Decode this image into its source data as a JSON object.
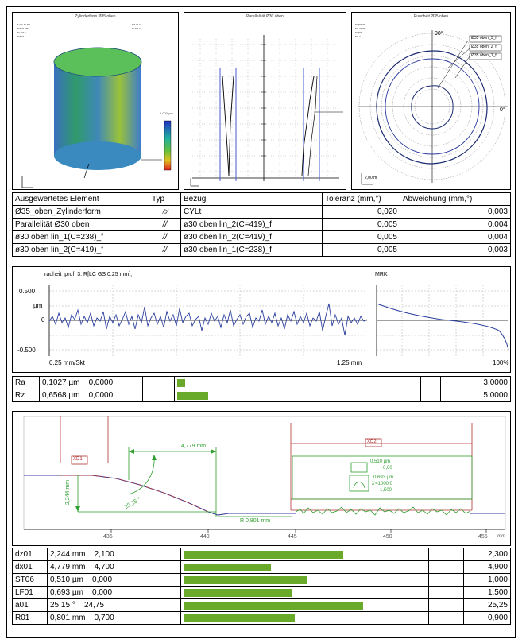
{
  "panels": {
    "cylinder_title": "Zylinderform Ø35 oben",
    "parallel_title": "Parallelität Ø30 oben",
    "roundness_title": "Rundheit Ø35 oben",
    "cylinder_scale": "1,000 µm",
    "roundness_angle": "90°",
    "roundness_zero": "0°",
    "roundness_scale": "2,00 m",
    "legend": [
      "Ø35 oben_3_f",
      "Ø35 oben_2_f",
      "Ø35 oben_1_f"
    ]
  },
  "eval_table": {
    "headers": [
      "Ausgewertetes Element",
      "Typ",
      "Bezug",
      "Toleranz (mm,°)",
      "Abweichung (mm,°)"
    ],
    "rows": [
      {
        "element": "Ø35_oben_Zylinderform",
        "type": "⌭",
        "ref": "CYLt",
        "tol": "0,020",
        "dev": "0,003"
      },
      {
        "element": "Parallelität Ø30 oben",
        "type": "//",
        "ref": "ø30 oben lin_2(C=419)_f",
        "tol": "0,005",
        "dev": "0,004"
      },
      {
        "element": "ø30 oben lin_1(C=238)_f",
        "type": "//",
        "ref": "ø30 oben lin_2(C=419)_f",
        "tol": "0,005",
        "dev": "0,004"
      },
      {
        "element": "ø30 oben lin_2(C=419)_f",
        "type": "//",
        "ref": "ø30 oben lin_1(C=238)_f",
        "tol": "0,005",
        "dev": "0,003"
      }
    ]
  },
  "roughness": {
    "title": "rauheit_prof_3. R[LC GS 0.25 mm];",
    "mrk": "MRK",
    "y_top": "0.500",
    "y_unit": "µm",
    "y_zero": "0",
    "y_bottom": "-0.500",
    "x_left": "0.25 mm/Skt",
    "x_right": "1.25 mm",
    "mrk_pct": "100%"
  },
  "rough_table": [
    {
      "name": "Ra",
      "value": "0,1027",
      "unit": "µm",
      "min": "0,0000",
      "fill": 0.033,
      "max": "3,0000"
    },
    {
      "name": "Rz",
      "value": "0,6568",
      "unit": "µm",
      "min": "0,0000",
      "fill": 0.13,
      "max": "5,0000"
    }
  ],
  "contour": {
    "x_ticks": [
      "435",
      "440",
      "445",
      "450",
      "455"
    ],
    "x_unit": "mm",
    "label_xd1": "XD1",
    "label_xd2": "XD2",
    "dim_x": "4,779 mm",
    "dim_z": "2,244 mm",
    "angle": "25,15 °",
    "radius": "R 0,801 mm",
    "st_val": "0,510 µm",
    "st_lim": "0,00",
    "lf_val": "0,693 µm",
    "lf_lc": "λ'=1000,0",
    "lf_lim": "1,500"
  },
  "contour_table": [
    {
      "name": "dz01",
      "value": "2,244",
      "unit": "mm",
      "min": "2,100",
      "fill": 0.66,
      "max": "2,300"
    },
    {
      "name": "dx01",
      "value": "4,779",
      "unit": "mm",
      "min": "4,700",
      "fill": 0.36,
      "max": "4,900"
    },
    {
      "name": "ST06",
      "value": "0,510",
      "unit": "µm",
      "min": "0,000",
      "fill": 0.51,
      "max": "1,000"
    },
    {
      "name": "LF01",
      "value": "0,693",
      "unit": "µm",
      "min": "0,000",
      "fill": 0.45,
      "max": "1,500"
    },
    {
      "name": "a01",
      "value": "25,15",
      "unit": "°",
      "min": "24,75",
      "fill": 0.74,
      "max": "25,25"
    },
    {
      "name": "R01",
      "value": "0,801",
      "unit": "mm",
      "min": "0,700",
      "fill": 0.46,
      "max": "0,900"
    }
  ],
  "colors": {
    "bar": "#6aaa2a",
    "profile": "#2b3f9e",
    "contour_green": "#2e9e2e",
    "contour_red": "#b03030"
  }
}
